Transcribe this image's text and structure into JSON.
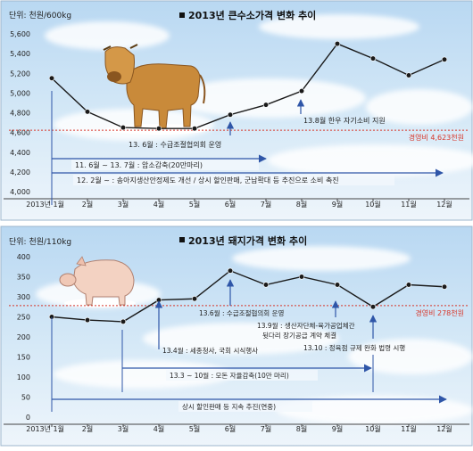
{
  "chart_data": [
    {
      "type": "line",
      "title": "2013년 큰수소가격 변화 추이",
      "unit_label": "단위: 천원/600kg",
      "categories": [
        "2013년 1월",
        "2월",
        "3월",
        "4월",
        "5월",
        "6월",
        "7월",
        "8월",
        "9월",
        "10월",
        "11월",
        "12월"
      ],
      "values": [
        5150,
        4810,
        4650,
        4640,
        4640,
        4780,
        4880,
        5020,
        5500,
        5350,
        5180,
        5340
      ],
      "ylim": [
        4000,
        5600
      ],
      "yticks": [
        4000,
        4200,
        4400,
        4600,
        4800,
        5000,
        5200,
        5400,
        5600
      ],
      "ytick_labels": [
        "4,000",
        "4,200",
        "4,400",
        "4,600",
        "4,800",
        "5,000",
        "5,200",
        "5,400",
        "5,600"
      ],
      "reference": {
        "value": 4623,
        "label": "경영비 4,623천원"
      },
      "annotations": {
        "a1": "13.8월 한우 자기소비 지원",
        "a2": "13. 6월 : 수급조절협의회 운영",
        "a3": "11. 6월 ~ 13. 7월 : 암소감축(20만마리)",
        "a4": "12. 2월 ~ : 송아지생산안정제도 개선 / 상시 할인판매, 군납확대 등 추진으로 소비 촉진"
      },
      "line_color": "#1a1a1a",
      "arrow_color": "#2f56a8",
      "reference_color": "#d8362a"
    },
    {
      "type": "line",
      "title": "2013년 돼지가격 변화 추이",
      "unit_label": "단위: 천원/110kg",
      "categories": [
        "2013년 1월",
        "2월",
        "3월",
        "4월",
        "5월",
        "6월",
        "7월",
        "8월",
        "9월",
        "10월",
        "11월",
        "12월"
      ],
      "values": [
        250,
        242,
        238,
        292,
        295,
        365,
        330,
        350,
        330,
        275,
        330,
        325
      ],
      "ylim": [
        0,
        400
      ],
      "yticks": [
        0,
        50,
        100,
        150,
        200,
        250,
        300,
        350,
        400
      ],
      "ytick_labels": [
        "0",
        "50",
        "100",
        "150",
        "200",
        "250",
        "300",
        "350",
        "400"
      ],
      "reference": {
        "value": 278,
        "label": "경영비 278천원"
      },
      "annotations": {
        "b1": "13.6월 : 수급조절협의회 운영",
        "b2a": "13.9월 : 생산자단체-육가공업체간",
        "b2b": "뒷다리 장기공급 계약 체결",
        "b3": "13.4월 : 세종청사, 국회 시식행사",
        "b4": "13.10 : 정육점 규제 완화 법령 시행",
        "b5": "13.3 ~ 10월 : 모돈 자율감축(10만 마리)",
        "b6": "상시 할인판매 등 지속 추진(연중)"
      },
      "line_color": "#1a1a1a",
      "arrow_color": "#2f56a8",
      "reference_color": "#d8362a"
    }
  ]
}
